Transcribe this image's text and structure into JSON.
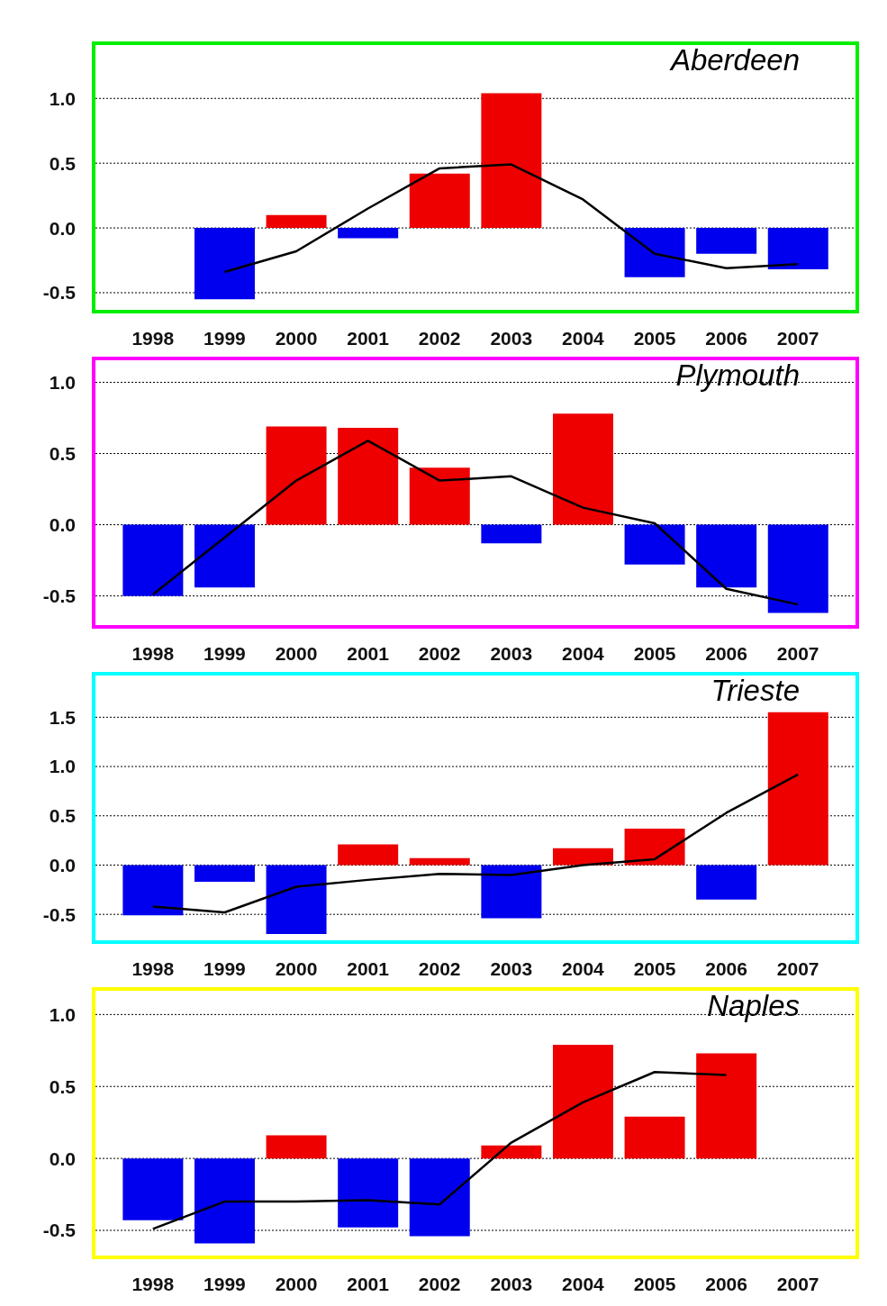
{
  "chart_data": [
    {
      "type": "bar",
      "title": "Aberdeen",
      "categories": [
        "1998",
        "1999",
        "2000",
        "2001",
        "2002",
        "2003",
        "2004",
        "2005",
        "2006",
        "2007"
      ],
      "ylim": [
        -0.66,
        1.44
      ],
      "yticks": [
        {
          "value": -0.5,
          "label": "-0.5"
        },
        {
          "value": 0,
          "label": "0.0"
        },
        {
          "value": 0.5,
          "label": "0.5"
        },
        {
          "value": 1,
          "label": "1.0"
        }
      ],
      "grid": "y",
      "series": [
        {
          "values": [
            null,
            -0.55,
            0.1,
            -0.08,
            0.42,
            1.04,
            null,
            -0.38,
            -0.2,
            -0.32
          ],
          "colors": [
            "#ee0000",
            "#0000ee",
            "#ee0000",
            "#0000ee",
            "#ee0000",
            "#ee0000",
            "#ee0000",
            "#0000ee",
            "#0000ee",
            "#0000ee"
          ]
        },
        {
          "type": "line",
          "color": "#000000",
          "values": [
            null,
            -0.34,
            -0.18,
            0.15,
            0.46,
            0.49,
            0.22,
            -0.2,
            -0.31,
            -0.28
          ]
        }
      ]
    },
    {
      "type": "bar",
      "title": "Plymouth",
      "categories": [
        "1998",
        "1999",
        "2000",
        "2001",
        "2002",
        "2003",
        "2004",
        "2005",
        "2006",
        "2007"
      ],
      "ylim": [
        -0.73,
        1.18
      ],
      "yticks": [
        {
          "value": -0.5,
          "label": "-0.5"
        },
        {
          "value": 0,
          "label": "0.0"
        },
        {
          "value": 0.5,
          "label": "0.5"
        },
        {
          "value": 1,
          "label": "1.0"
        }
      ],
      "grid": "y",
      "series": [
        {
          "values": [
            -0.5,
            -0.44,
            0.69,
            0.68,
            0.4,
            -0.13,
            0.78,
            -0.28,
            -0.44,
            -0.62
          ],
          "colors": [
            "#0000ee",
            "#0000ee",
            "#ee0000",
            "#ee0000",
            "#ee0000",
            "#0000ee",
            "#ee0000",
            "#0000ee",
            "#0000ee",
            "#0000ee"
          ]
        },
        {
          "type": "line",
          "color": "#000000",
          "values": [
            -0.49,
            -0.09,
            0.31,
            0.59,
            0.31,
            0.34,
            0.12,
            0.01,
            -0.45,
            -0.56
          ]
        }
      ]
    },
    {
      "type": "bar",
      "title": "Trieste",
      "categories": [
        "1998",
        "1999",
        "2000",
        "2001",
        "2002",
        "2003",
        "2004",
        "2005",
        "2006",
        "2007"
      ],
      "ylim": [
        -0.8,
        1.96
      ],
      "yticks": [
        {
          "value": -0.5,
          "label": "-0.5"
        },
        {
          "value": 0,
          "label": "0.0"
        },
        {
          "value": 0.5,
          "label": "0.5"
        },
        {
          "value": 1,
          "label": "1.0"
        },
        {
          "value": 1.5,
          "label": "1.5"
        }
      ],
      "grid": "y",
      "series": [
        {
          "values": [
            -0.51,
            -0.17,
            -0.7,
            0.21,
            0.07,
            -0.54,
            0.17,
            0.37,
            -0.35,
            1.55
          ],
          "colors": [
            "#0000ee",
            "#0000ee",
            "#0000ee",
            "#ee0000",
            "#ee0000",
            "#0000ee",
            "#ee0000",
            "#ee0000",
            "#0000ee",
            "#ee0000"
          ]
        },
        {
          "type": "line",
          "color": "#000000",
          "values": [
            -0.42,
            -0.48,
            -0.22,
            -0.15,
            -0.09,
            -0.1,
            0.0,
            0.06,
            0.53,
            0.92
          ]
        }
      ]
    },
    {
      "type": "bar",
      "title": "Naples",
      "categories": [
        "1998",
        "1999",
        "2000",
        "2001",
        "2002",
        "2003",
        "2004",
        "2005",
        "2006",
        "2007"
      ],
      "ylim": [
        -0.7,
        1.19
      ],
      "yticks": [
        {
          "value": -0.5,
          "label": "-0.5"
        },
        {
          "value": 0,
          "label": "0.0"
        },
        {
          "value": 0.5,
          "label": "0.5"
        },
        {
          "value": 1,
          "label": "1.0"
        }
      ],
      "grid": "y",
      "series": [
        {
          "values": [
            -0.43,
            -0.59,
            0.16,
            -0.48,
            -0.54,
            0.09,
            0.79,
            0.29,
            0.73,
            null
          ],
          "colors": [
            "#0000ee",
            "#0000ee",
            "#ee0000",
            "#0000ee",
            "#0000ee",
            "#ee0000",
            "#ee0000",
            "#ee0000",
            "#ee0000",
            "#ee0000"
          ]
        },
        {
          "type": "line",
          "color": "#000000",
          "values": [
            -0.49,
            -0.3,
            -0.3,
            -0.29,
            -0.32,
            0.11,
            0.39,
            0.6,
            0.58,
            null
          ]
        }
      ]
    }
  ]
}
